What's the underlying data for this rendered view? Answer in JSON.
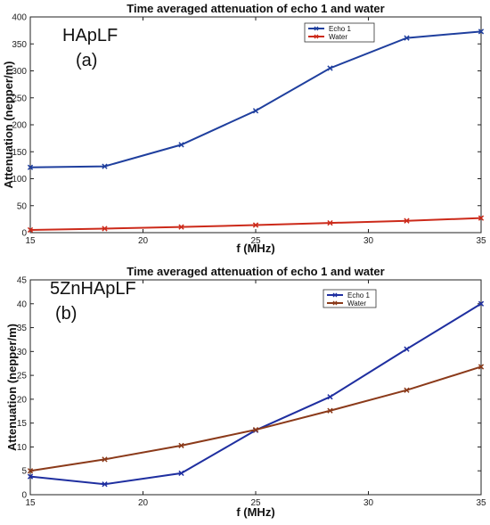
{
  "chart_data": [
    {
      "type": "line",
      "title": "Time averaged attenuation of echo 1 and water",
      "panel_name": "HApLF",
      "panel_tag": "(a)",
      "xlabel": "f (MHz)",
      "ylabel": "Attenuation (nepper/m)",
      "xlim": [
        15,
        35
      ],
      "ylim": [
        0,
        400
      ],
      "xticks": [
        15,
        20,
        25,
        30,
        35
      ],
      "yticks": [
        0,
        50,
        100,
        150,
        200,
        250,
        300,
        350,
        400
      ],
      "grid": false,
      "legend_position": "top-right",
      "x": [
        15,
        18.3,
        21.7,
        25,
        28.3,
        31.7,
        35
      ],
      "series": [
        {
          "name": "Echo 1",
          "color": "#1f3f9e",
          "values": [
            121,
            123,
            163,
            226,
            305,
            361,
            373
          ]
        },
        {
          "name": "Water",
          "color": "#cc2a1a",
          "values": [
            5,
            7.5,
            10.5,
            14,
            18,
            22,
            27
          ]
        }
      ]
    },
    {
      "type": "line",
      "title": "Time averaged attenuation of echo 1 and water",
      "panel_name": "5ZnHApLF",
      "panel_tag": "(b)",
      "xlabel": "f (MHz)",
      "ylabel": "Attenuation (nepper/m)",
      "xlim": [
        15,
        35
      ],
      "ylim": [
        0,
        45
      ],
      "xticks": [
        15,
        20,
        25,
        30,
        35
      ],
      "yticks": [
        0,
        5,
        10,
        15,
        20,
        25,
        30,
        35,
        40,
        45
      ],
      "grid": false,
      "legend_position": "top-right",
      "x": [
        15,
        18.3,
        21.7,
        25,
        28.3,
        31.7,
        35
      ],
      "series": [
        {
          "name": "Echo 1",
          "color": "#1f2fa0",
          "values": [
            3.8,
            2.2,
            4.5,
            13.5,
            20.5,
            30.5,
            40
          ]
        },
        {
          "name": "Water",
          "color": "#8b3a1a",
          "values": [
            5,
            7.4,
            10.3,
            13.6,
            17.6,
            21.9,
            26.8
          ]
        }
      ]
    }
  ]
}
